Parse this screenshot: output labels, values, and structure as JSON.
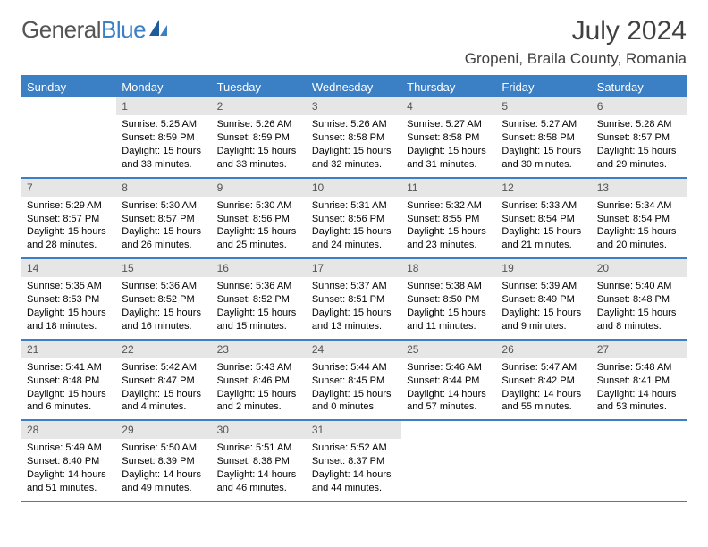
{
  "logo": {
    "general": "General",
    "blue": "Blue"
  },
  "month_title": "July 2024",
  "location": "Gropeni, Braila County, Romania",
  "weekdays": [
    "Sunday",
    "Monday",
    "Tuesday",
    "Wednesday",
    "Thursday",
    "Friday",
    "Saturday"
  ],
  "colors": {
    "brand_blue": "#3b7fc4",
    "text_gray": "#404040",
    "date_bg": "#e6e6e6",
    "date_fg": "#555555"
  },
  "calendar": {
    "type": "table",
    "rows": 5,
    "cols": 7,
    "week1": [
      {
        "date": "",
        "sunrise": "",
        "sunset": "",
        "daylight1": "",
        "daylight2": ""
      },
      {
        "date": "1",
        "sunrise": "Sunrise: 5:25 AM",
        "sunset": "Sunset: 8:59 PM",
        "daylight1": "Daylight: 15 hours",
        "daylight2": "and 33 minutes."
      },
      {
        "date": "2",
        "sunrise": "Sunrise: 5:26 AM",
        "sunset": "Sunset: 8:59 PM",
        "daylight1": "Daylight: 15 hours",
        "daylight2": "and 33 minutes."
      },
      {
        "date": "3",
        "sunrise": "Sunrise: 5:26 AM",
        "sunset": "Sunset: 8:58 PM",
        "daylight1": "Daylight: 15 hours",
        "daylight2": "and 32 minutes."
      },
      {
        "date": "4",
        "sunrise": "Sunrise: 5:27 AM",
        "sunset": "Sunset: 8:58 PM",
        "daylight1": "Daylight: 15 hours",
        "daylight2": "and 31 minutes."
      },
      {
        "date": "5",
        "sunrise": "Sunrise: 5:27 AM",
        "sunset": "Sunset: 8:58 PM",
        "daylight1": "Daylight: 15 hours",
        "daylight2": "and 30 minutes."
      },
      {
        "date": "6",
        "sunrise": "Sunrise: 5:28 AM",
        "sunset": "Sunset: 8:57 PM",
        "daylight1": "Daylight: 15 hours",
        "daylight2": "and 29 minutes."
      }
    ],
    "week2": [
      {
        "date": "7",
        "sunrise": "Sunrise: 5:29 AM",
        "sunset": "Sunset: 8:57 PM",
        "daylight1": "Daylight: 15 hours",
        "daylight2": "and 28 minutes."
      },
      {
        "date": "8",
        "sunrise": "Sunrise: 5:30 AM",
        "sunset": "Sunset: 8:57 PM",
        "daylight1": "Daylight: 15 hours",
        "daylight2": "and 26 minutes."
      },
      {
        "date": "9",
        "sunrise": "Sunrise: 5:30 AM",
        "sunset": "Sunset: 8:56 PM",
        "daylight1": "Daylight: 15 hours",
        "daylight2": "and 25 minutes."
      },
      {
        "date": "10",
        "sunrise": "Sunrise: 5:31 AM",
        "sunset": "Sunset: 8:56 PM",
        "daylight1": "Daylight: 15 hours",
        "daylight2": "and 24 minutes."
      },
      {
        "date": "11",
        "sunrise": "Sunrise: 5:32 AM",
        "sunset": "Sunset: 8:55 PM",
        "daylight1": "Daylight: 15 hours",
        "daylight2": "and 23 minutes."
      },
      {
        "date": "12",
        "sunrise": "Sunrise: 5:33 AM",
        "sunset": "Sunset: 8:54 PM",
        "daylight1": "Daylight: 15 hours",
        "daylight2": "and 21 minutes."
      },
      {
        "date": "13",
        "sunrise": "Sunrise: 5:34 AM",
        "sunset": "Sunset: 8:54 PM",
        "daylight1": "Daylight: 15 hours",
        "daylight2": "and 20 minutes."
      }
    ],
    "week3": [
      {
        "date": "14",
        "sunrise": "Sunrise: 5:35 AM",
        "sunset": "Sunset: 8:53 PM",
        "daylight1": "Daylight: 15 hours",
        "daylight2": "and 18 minutes."
      },
      {
        "date": "15",
        "sunrise": "Sunrise: 5:36 AM",
        "sunset": "Sunset: 8:52 PM",
        "daylight1": "Daylight: 15 hours",
        "daylight2": "and 16 minutes."
      },
      {
        "date": "16",
        "sunrise": "Sunrise: 5:36 AM",
        "sunset": "Sunset: 8:52 PM",
        "daylight1": "Daylight: 15 hours",
        "daylight2": "and 15 minutes."
      },
      {
        "date": "17",
        "sunrise": "Sunrise: 5:37 AM",
        "sunset": "Sunset: 8:51 PM",
        "daylight1": "Daylight: 15 hours",
        "daylight2": "and 13 minutes."
      },
      {
        "date": "18",
        "sunrise": "Sunrise: 5:38 AM",
        "sunset": "Sunset: 8:50 PM",
        "daylight1": "Daylight: 15 hours",
        "daylight2": "and 11 minutes."
      },
      {
        "date": "19",
        "sunrise": "Sunrise: 5:39 AM",
        "sunset": "Sunset: 8:49 PM",
        "daylight1": "Daylight: 15 hours",
        "daylight2": "and 9 minutes."
      },
      {
        "date": "20",
        "sunrise": "Sunrise: 5:40 AM",
        "sunset": "Sunset: 8:48 PM",
        "daylight1": "Daylight: 15 hours",
        "daylight2": "and 8 minutes."
      }
    ],
    "week4": [
      {
        "date": "21",
        "sunrise": "Sunrise: 5:41 AM",
        "sunset": "Sunset: 8:48 PM",
        "daylight1": "Daylight: 15 hours",
        "daylight2": "and 6 minutes."
      },
      {
        "date": "22",
        "sunrise": "Sunrise: 5:42 AM",
        "sunset": "Sunset: 8:47 PM",
        "daylight1": "Daylight: 15 hours",
        "daylight2": "and 4 minutes."
      },
      {
        "date": "23",
        "sunrise": "Sunrise: 5:43 AM",
        "sunset": "Sunset: 8:46 PM",
        "daylight1": "Daylight: 15 hours",
        "daylight2": "and 2 minutes."
      },
      {
        "date": "24",
        "sunrise": "Sunrise: 5:44 AM",
        "sunset": "Sunset: 8:45 PM",
        "daylight1": "Daylight: 15 hours",
        "daylight2": "and 0 minutes."
      },
      {
        "date": "25",
        "sunrise": "Sunrise: 5:46 AM",
        "sunset": "Sunset: 8:44 PM",
        "daylight1": "Daylight: 14 hours",
        "daylight2": "and 57 minutes."
      },
      {
        "date": "26",
        "sunrise": "Sunrise: 5:47 AM",
        "sunset": "Sunset: 8:42 PM",
        "daylight1": "Daylight: 14 hours",
        "daylight2": "and 55 minutes."
      },
      {
        "date": "27",
        "sunrise": "Sunrise: 5:48 AM",
        "sunset": "Sunset: 8:41 PM",
        "daylight1": "Daylight: 14 hours",
        "daylight2": "and 53 minutes."
      }
    ],
    "week5": [
      {
        "date": "28",
        "sunrise": "Sunrise: 5:49 AM",
        "sunset": "Sunset: 8:40 PM",
        "daylight1": "Daylight: 14 hours",
        "daylight2": "and 51 minutes."
      },
      {
        "date": "29",
        "sunrise": "Sunrise: 5:50 AM",
        "sunset": "Sunset: 8:39 PM",
        "daylight1": "Daylight: 14 hours",
        "daylight2": "and 49 minutes."
      },
      {
        "date": "30",
        "sunrise": "Sunrise: 5:51 AM",
        "sunset": "Sunset: 8:38 PM",
        "daylight1": "Daylight: 14 hours",
        "daylight2": "and 46 minutes."
      },
      {
        "date": "31",
        "sunrise": "Sunrise: 5:52 AM",
        "sunset": "Sunset: 8:37 PM",
        "daylight1": "Daylight: 14 hours",
        "daylight2": "and 44 minutes."
      },
      {
        "date": "",
        "sunrise": "",
        "sunset": "",
        "daylight1": "",
        "daylight2": ""
      },
      {
        "date": "",
        "sunrise": "",
        "sunset": "",
        "daylight1": "",
        "daylight2": ""
      },
      {
        "date": "",
        "sunrise": "",
        "sunset": "",
        "daylight1": "",
        "daylight2": ""
      }
    ]
  }
}
